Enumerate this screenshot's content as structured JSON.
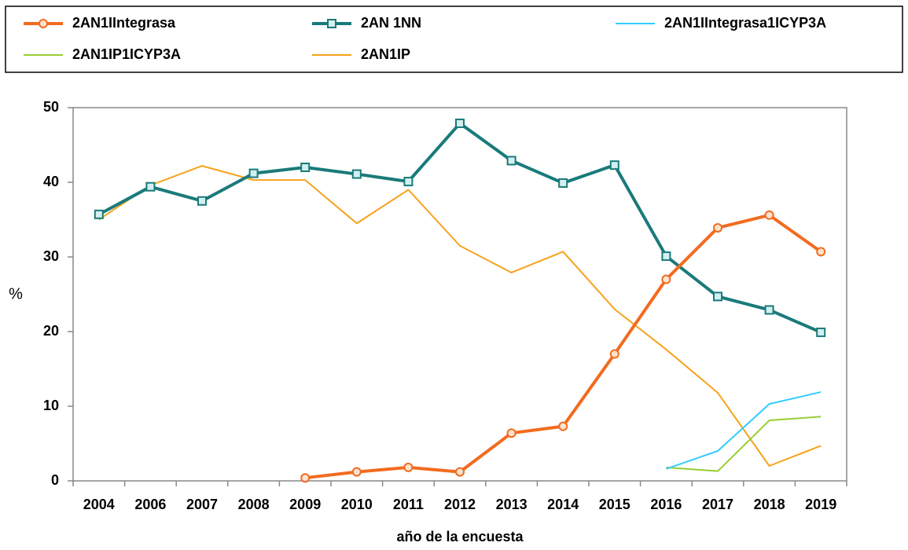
{
  "chart_data": {
    "type": "line",
    "x_label": "año de la encuesta",
    "y_label": "%",
    "categories": [
      "2004",
      "2006",
      "2007",
      "2008",
      "2009",
      "2010",
      "2011",
      "2012",
      "2013",
      "2014",
      "2015",
      "2016",
      "2017",
      "2018",
      "2019"
    ],
    "series": [
      {
        "name": "2AN1IIntegrasa",
        "color": "#f26b1f",
        "marker": "circle",
        "width": 4,
        "values": [
          null,
          null,
          null,
          null,
          0.4,
          1.2,
          1.8,
          1.2,
          6.4,
          7.3,
          17.0,
          27.0,
          33.9,
          35.6,
          30.7
        ]
      },
      {
        "name": "2AN 1NN",
        "color": "#1a7a7a",
        "marker": "square",
        "width": 4,
        "values": [
          35.7,
          39.4,
          37.5,
          41.2,
          42.0,
          41.1,
          40.1,
          47.9,
          42.9,
          39.9,
          42.3,
          30.1,
          24.7,
          22.9,
          19.9
        ]
      },
      {
        "name": "2AN1IIntegrasa1ICYP3A",
        "color": "#33ccff",
        "marker": null,
        "width": 2,
        "values": [
          null,
          null,
          null,
          null,
          null,
          null,
          null,
          null,
          null,
          null,
          null,
          1.6,
          4.0,
          10.3,
          11.9
        ]
      },
      {
        "name": "2AN1IP1ICYP3A",
        "color": "#99cc33",
        "marker": null,
        "width": 2,
        "values": [
          null,
          null,
          null,
          null,
          null,
          null,
          null,
          null,
          null,
          null,
          null,
          1.8,
          1.3,
          8.1,
          8.6
        ]
      },
      {
        "name": "2AN1IP",
        "color": "#f7a21b",
        "marker": null,
        "width": 2,
        "values": [
          35.0,
          39.6,
          42.2,
          40.3,
          40.3,
          34.5,
          39.0,
          31.5,
          27.9,
          30.7,
          23.0,
          17.6,
          11.8,
          2.0,
          4.7
        ]
      }
    ],
    "ylim": [
      0,
      50
    ],
    "yticks": [
      0,
      10,
      20,
      30,
      40,
      50
    ],
    "grid": false,
    "legend": "top"
  }
}
